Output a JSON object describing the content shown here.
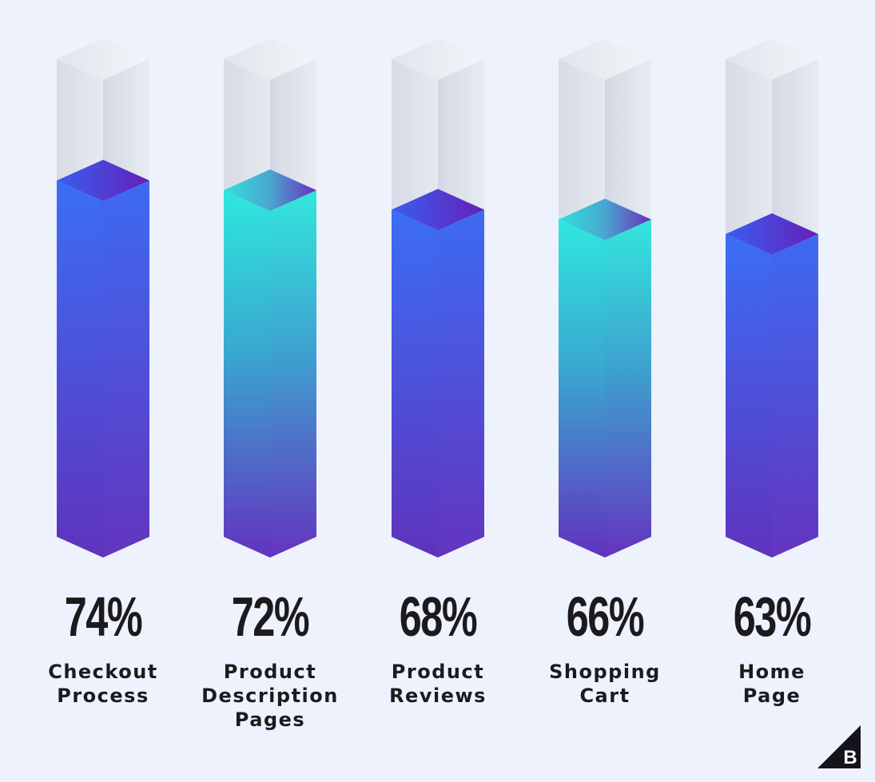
{
  "chart_data": {
    "type": "bar",
    "title": "",
    "xlabel": "",
    "ylabel": "",
    "ylim": [
      0,
      100
    ],
    "grid": false,
    "legend": null,
    "categories": [
      "Checkout Process",
      "Product Description Pages",
      "Product Reviews",
      "Shopping Cart",
      "Home Page"
    ],
    "values": [
      74,
      72,
      68,
      66,
      63
    ],
    "value_labels": [
      "74%",
      "72%",
      "68%",
      "66%",
      "63%"
    ],
    "bar_styles": [
      "blue",
      "teal",
      "blue",
      "teal",
      "blue"
    ]
  },
  "bars": [
    {
      "value": "74%",
      "label_lines": [
        "Checkout",
        "Process"
      ]
    },
    {
      "value": "72%",
      "label_lines": [
        "Product",
        "Description",
        "Pages"
      ]
    },
    {
      "value": "68%",
      "label_lines": [
        "Product",
        "Reviews"
      ]
    },
    {
      "value": "66%",
      "label_lines": [
        "Shopping",
        "Cart"
      ]
    },
    {
      "value": "63%",
      "label_lines": [
        "Home",
        "Page"
      ]
    }
  ],
  "colors": {
    "background": "#edf2fc",
    "blue_top": "#3b6ef5",
    "blue_bottom": "#5d35bd",
    "teal_top": "#2ee8de",
    "teal_bottom": "#6034bf",
    "ghost": "#dde2ea",
    "text": "#1c1a1d"
  },
  "logo": {
    "letter": "B",
    "icon": "bigcommerce-logo-icon"
  }
}
